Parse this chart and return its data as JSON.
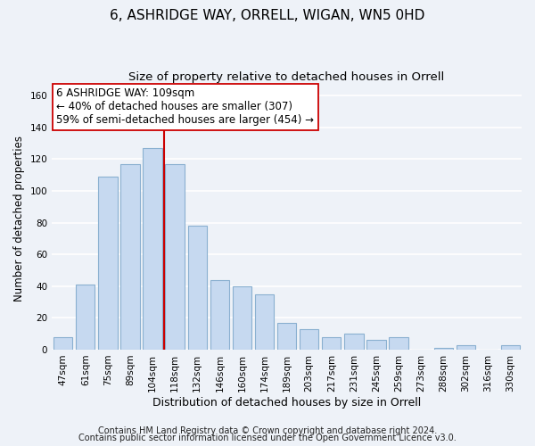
{
  "title": "6, ASHRIDGE WAY, ORRELL, WIGAN, WN5 0HD",
  "subtitle": "Size of property relative to detached houses in Orrell",
  "xlabel": "Distribution of detached houses by size in Orrell",
  "ylabel": "Number of detached properties",
  "bar_labels": [
    "47sqm",
    "61sqm",
    "75sqm",
    "89sqm",
    "104sqm",
    "118sqm",
    "132sqm",
    "146sqm",
    "160sqm",
    "174sqm",
    "189sqm",
    "203sqm",
    "217sqm",
    "231sqm",
    "245sqm",
    "259sqm",
    "273sqm",
    "288sqm",
    "302sqm",
    "316sqm",
    "330sqm"
  ],
  "bar_values": [
    8,
    41,
    109,
    117,
    127,
    117,
    78,
    44,
    40,
    35,
    17,
    13,
    8,
    10,
    6,
    8,
    0,
    1,
    3,
    0,
    3
  ],
  "bar_color": "#c6d9f0",
  "bar_edge_color": "#8ab0d0",
  "vline_x_index": 4.5,
  "vline_color": "#cc0000",
  "annotation_line1": "6 ASHRIDGE WAY: 109sqm",
  "annotation_line2": "← 40% of detached houses are smaller (307)",
  "annotation_line3": "59% of semi-detached houses are larger (454) →",
  "annotation_box_edgecolor": "#cc0000",
  "annotation_box_facecolor": "#ffffff",
  "ylim": [
    0,
    165
  ],
  "yticks": [
    0,
    20,
    40,
    60,
    80,
    100,
    120,
    140,
    160
  ],
  "footer1": "Contains HM Land Registry data © Crown copyright and database right 2024.",
  "footer2": "Contains public sector information licensed under the Open Government Licence v3.0.",
  "background_color": "#eef2f8",
  "grid_color": "#ffffff",
  "title_fontsize": 11,
  "subtitle_fontsize": 9.5,
  "xlabel_fontsize": 9,
  "ylabel_fontsize": 8.5,
  "tick_fontsize": 7.5,
  "annotation_fontsize": 8.5,
  "footer_fontsize": 7
}
